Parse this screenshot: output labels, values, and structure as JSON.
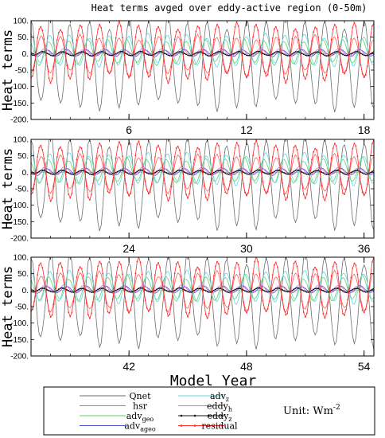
{
  "chart_data": {
    "type": "line",
    "title": "Heat terms avged over eddy-active region (0-50m)",
    "xlabel": "Model Year",
    "unit_text": "Unit: Wm",
    "unit_sup": "-2",
    "panels": [
      {
        "ylabel": "Heat terms",
        "xlim": [
          1,
          18.5
        ],
        "ylim": [
          -200,
          100
        ],
        "xticks": [
          "6",
          "12",
          "18"
        ],
        "xtick_values": [
          6,
          12,
          18
        ]
      },
      {
        "ylabel": "Heat terms",
        "xlim": [
          19,
          36.5
        ],
        "ylim": [
          -200,
          100
        ],
        "xticks": [
          "24",
          "30",
          "36"
        ],
        "xtick_values": [
          24,
          30,
          36
        ]
      },
      {
        "ylabel": "Heat terms",
        "xlim": [
          37,
          54.5
        ],
        "ylim": [
          -200,
          100
        ],
        "xticks": [
          "42",
          "48",
          "54"
        ],
        "xtick_values": [
          42,
          48,
          54
        ]
      }
    ],
    "yticks": [
      "100.",
      "50.",
      "0.",
      "-50.",
      "-100.",
      "-150.",
      "-200."
    ],
    "ytick_values": [
      100,
      50,
      0,
      -50,
      -100,
      -150,
      -200
    ],
    "series": [
      {
        "name": "Qnet",
        "sub": "",
        "color": "#6e6e6e",
        "amplitude": 128,
        "offset": -30,
        "phase": 0.0,
        "marker": false
      },
      {
        "name": "hsr",
        "sub": "",
        "color": "#ff5c5c",
        "amplitude": 55,
        "offset": -5,
        "phase": 3.14,
        "marker": false
      },
      {
        "name": "adv",
        "sub": "geo",
        "color": "#5fd35f",
        "amplitude": 35,
        "offset": 5,
        "phase": 0.6,
        "marker": false
      },
      {
        "name": "adv",
        "sub": "ageo",
        "color": "#4b4bd8",
        "amplitude": 10,
        "offset": 2,
        "phase": 1.2,
        "marker": false
      },
      {
        "name": "adv",
        "sub": "z",
        "color": "#5ed8e0",
        "amplitude": 45,
        "offset": 10,
        "phase": 0.2,
        "marker": false
      },
      {
        "name": "eddy",
        "sub": "h",
        "color": "#e06ee0",
        "amplitude": 12,
        "offset": 3,
        "phase": 1.8,
        "marker": false
      },
      {
        "name": "eddy",
        "sub": "z",
        "color": "#111111",
        "amplitude": 6,
        "offset": 0,
        "phase": 2.5,
        "marker": true
      },
      {
        "name": "residual",
        "sub": "",
        "color": "#ff2a2a",
        "amplitude": 80,
        "offset": 5,
        "phase": 3.14,
        "marker": true
      }
    ]
  }
}
